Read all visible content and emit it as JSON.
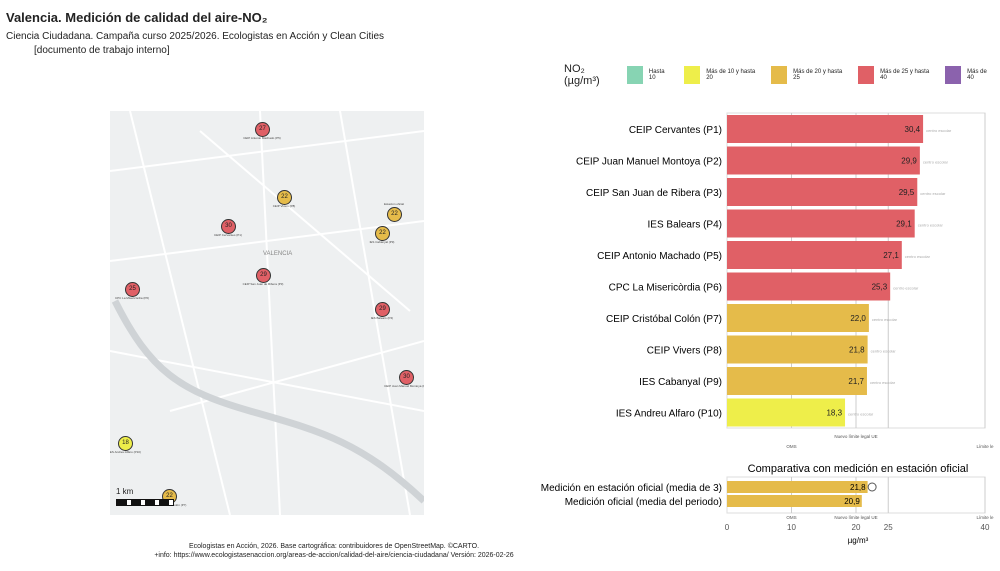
{
  "header": {
    "title": "Valencia. Medición de calidad del aire-NO₂",
    "subtitle": "Ciencia Ciudadana. Campaña curso 2025/2026. Ecologistas en Acción y Clean Cities",
    "note": "[documento de trabajo interno]"
  },
  "legend": {
    "title": "NO₂ (µg/m³)",
    "items": [
      {
        "label": "Hasta 10",
        "color": "#87d4b3"
      },
      {
        "label": "Más de 10 y hasta 20",
        "color": "#eeee4a"
      },
      {
        "label": "Más de 20 y hasta 25",
        "color": "#e5bb4a"
      },
      {
        "label": "Más de 25 y hasta 40",
        "color": "#e06066"
      },
      {
        "label": "Más de 40",
        "color": "#8b62ad"
      }
    ]
  },
  "map": {
    "city_label": "VALENCIA",
    "scale_label": "1 km",
    "markers": [
      {
        "value": "27",
        "label": "CEIP Antonio Machado (P5)",
        "color": "#e06066"
      },
      {
        "value": "22",
        "label": "CEIP Vivers (P8)",
        "color": "#e5bb4a"
      },
      {
        "value": "22",
        "label": "Estación oficial",
        "color": "#e5bb4a"
      },
      {
        "value": "22",
        "label": "IES Cabanyal (P9)",
        "color": "#e5bb4a"
      },
      {
        "value": "30",
        "label": "CEIP Cervantes (P1)",
        "color": "#e06066"
      },
      {
        "value": "29",
        "label": "CEIP San Juan de Ribera (P3)",
        "color": "#e06066"
      },
      {
        "value": "25",
        "label": "CPC La Misericòrdia (P6)",
        "color": "#e06066"
      },
      {
        "value": "29",
        "label": "IES Balears (P4)",
        "color": "#e06066"
      },
      {
        "value": "30",
        "label": "CEIP Juan Manuel Montoya (P2)",
        "color": "#e06066"
      },
      {
        "value": "18",
        "label": "IES Andreu Alfaro (P10)",
        "color": "#eeee4a"
      },
      {
        "value": "22",
        "label": "CEIP Cristóbal Colón (P7)",
        "color": "#e5bb4a"
      }
    ]
  },
  "chart_data": [
    {
      "type": "bar",
      "orientation": "horizontal",
      "categories": [
        "CEIP Cervantes (P1)",
        "CEIP Juan Manuel Montoya (P2)",
        "CEIP San Juan de Ribera (P3)",
        "IES Balears (P4)",
        "CEIP Antonio Machado (P5)",
        "CPC La Misericòrdia (P6)",
        "CEIP Cristóbal Colón (P7)",
        "CEIP Vivers (P8)",
        "IES Cabanyal (P9)",
        "IES Andreu Alfaro (P10)"
      ],
      "values": [
        30.4,
        29.9,
        29.5,
        29.1,
        27.1,
        25.3,
        22.0,
        21.8,
        21.7,
        18.3
      ],
      "value_labels": [
        "30,4",
        "29,9",
        "29,5",
        "29,1",
        "27,1",
        "25,3",
        "22,0",
        "21,8",
        "21,7",
        "18,3"
      ],
      "colors": [
        "#e06066",
        "#e06066",
        "#e06066",
        "#e06066",
        "#e06066",
        "#e06066",
        "#e5bb4a",
        "#e5bb4a",
        "#e5bb4a",
        "#eeee4a"
      ],
      "bar_note": "centro escolar",
      "xlim": [
        0,
        40
      ],
      "reference_lines": [
        {
          "x": 10,
          "label": "OMS"
        },
        {
          "x": 20,
          "label": "Nuevo límite legal UE"
        },
        {
          "x": 40,
          "label": "Límite le"
        }
      ]
    },
    {
      "type": "bar",
      "orientation": "horizontal",
      "title": "Comparativa con medición en estación oficial",
      "categories": [
        "Medición en estación oficial (media de 3)",
        "Medición oficial (media del periodo)"
      ],
      "values": [
        21.8,
        20.9
      ],
      "value_labels": [
        "21,8",
        "20,9"
      ],
      "colors": [
        "#e5bb4a",
        "#e5bb4a"
      ],
      "xlim": [
        0,
        40
      ],
      "xticks": [
        0,
        10,
        20,
        25,
        40
      ],
      "xlabel": "µg/m³",
      "reference_lines": [
        {
          "x": 10,
          "label": "OMS"
        },
        {
          "x": 20,
          "label": "Nuevo límite legal UE"
        },
        {
          "x": 40,
          "label": "Límite le"
        }
      ]
    }
  ],
  "footer": {
    "line1": "Ecologistas en Acción, 2026. Base cartográfica: contribuidores de OpenStreetMap. ©CARTO.",
    "line2": "+info: https://www.ecologistasenaccion.org/areas-de-accion/calidad-del-aire/ciencia-ciudadana/ Versión: 2026-02-26"
  }
}
